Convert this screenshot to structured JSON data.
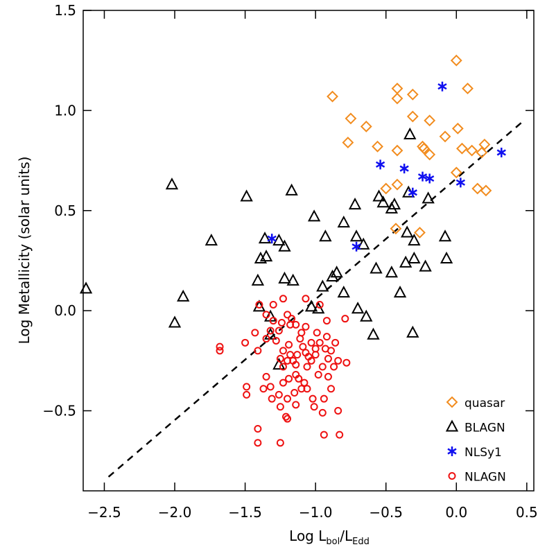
{
  "chart_data": {
    "type": "scatter",
    "xlabel": [
      "Log L",
      "bol",
      "/L",
      "Edd"
    ],
    "ylabel": "Log Metallicity (solar units)",
    "xlim": [
      -2.65,
      0.55
    ],
    "ylim": [
      -0.9,
      1.5
    ],
    "xticks": [
      {
        "value": -2.5,
        "label": "−2.5"
      },
      {
        "value": -2.0,
        "label": "−2.0"
      },
      {
        "value": -1.5,
        "label": "−1.5"
      },
      {
        "value": -1.0,
        "label": "−1.0"
      },
      {
        "value": -0.5,
        "label": "−0.5"
      },
      {
        "value": 0,
        "label": "0.0"
      },
      0.5
    ],
    "yticks": [
      {
        "value": -0.5,
        "label": "−0.5"
      },
      {
        "value": 0,
        "label": "0.0"
      },
      0.5,
      {
        "value": 1.0,
        "label": "1.0"
      },
      1.5
    ],
    "grid": false,
    "legend": "lower right",
    "fit_line": {
      "x": [
        -2.47,
        0.48
      ],
      "y": [
        -0.83,
        0.95
      ],
      "color": "#000000"
    },
    "series": [
      {
        "name": "quasar",
        "color": "#f28c1e",
        "marker": "diamond",
        "x": [
          0.0,
          -0.88,
          -0.42,
          -0.42,
          -0.31,
          -0.75,
          -0.77,
          -0.64,
          -0.56,
          -0.42,
          -0.31,
          -0.19,
          -0.24,
          -0.23,
          -0.19,
          -0.08,
          0.01,
          0.08,
          0.04,
          0.11,
          0.18,
          0.2,
          0.15,
          0.21,
          0.0,
          -0.5,
          -0.42,
          -0.43,
          -0.26
        ],
        "y": [
          1.25,
          1.07,
          1.11,
          1.06,
          1.08,
          0.96,
          0.84,
          0.92,
          0.82,
          0.8,
          0.97,
          0.95,
          0.82,
          0.81,
          0.78,
          0.87,
          0.91,
          1.11,
          0.81,
          0.8,
          0.79,
          0.83,
          0.61,
          0.6,
          0.69,
          0.61,
          0.63,
          0.41,
          0.39
        ]
      },
      {
        "name": "BLAGN",
        "color": "#000000",
        "marker": "triangle",
        "x": [
          -2.63,
          -2.02,
          -1.94,
          -2.0,
          -1.74,
          -1.49,
          -1.17,
          -1.36,
          -1.39,
          -1.35,
          -1.26,
          -1.22,
          -1.41,
          -1.4,
          -1.22,
          -1.16,
          -1.32,
          -1.26,
          -1.32,
          -1.01,
          -0.93,
          -0.85,
          -0.8,
          -1.03,
          -0.98,
          -0.95,
          -0.88,
          -0.8,
          -0.71,
          -0.72,
          -0.66,
          -0.7,
          -0.64,
          -0.59,
          -0.57,
          -0.55,
          -0.52,
          -0.46,
          -0.44,
          -0.46,
          -0.4,
          -0.34,
          -0.35,
          -0.33,
          -0.3,
          -0.36,
          -0.3,
          -0.31,
          -0.2,
          -0.22,
          -0.08,
          -0.07
        ],
        "y": [
          0.11,
          0.63,
          0.07,
          -0.06,
          0.35,
          0.57,
          0.6,
          0.36,
          0.26,
          0.27,
          0.35,
          0.32,
          0.15,
          0.02,
          0.16,
          0.15,
          -0.03,
          -0.27,
          -0.12,
          0.47,
          0.37,
          0.19,
          0.44,
          0.02,
          0.01,
          0.12,
          0.17,
          0.09,
          0.37,
          0.53,
          0.33,
          0.01,
          -0.03,
          -0.12,
          0.21,
          0.57,
          0.54,
          0.51,
          0.53,
          0.19,
          0.09,
          0.59,
          0.39,
          0.88,
          0.35,
          0.24,
          0.26,
          -0.11,
          0.56,
          0.22,
          0.37,
          0.26
        ]
      },
      {
        "name": "NLSy1",
        "color": "#1010f0",
        "marker": "asterisk",
        "x": [
          -0.1,
          0.32,
          -0.54,
          -0.37,
          -0.24,
          -0.19,
          -0.31,
          0.03,
          -1.31,
          -0.71
        ],
        "y": [
          1.12,
          0.79,
          0.73,
          0.71,
          0.67,
          0.66,
          0.59,
          0.64,
          0.36,
          0.32
        ]
      },
      {
        "name": "NLAGN",
        "color": "#ee1111",
        "marker": "circle",
        "x": [
          -1.68,
          -1.68,
          -1.4,
          -1.3,
          -1.23,
          -1.17,
          -1.35,
          -1.3,
          -1.2,
          -1.07,
          -0.97,
          -0.92,
          -0.79,
          -1.24,
          -1.18,
          -1.32,
          -1.26,
          -1.14,
          -1.07,
          -1.1,
          -0.99,
          -0.92,
          -1.11,
          -1.03,
          -1.5,
          -1.43,
          -1.41,
          -1.35,
          -1.28,
          -1.23,
          -1.19,
          -1.18,
          -1.09,
          -1.0,
          -0.97,
          -0.93,
          -0.89,
          -0.86,
          -1.07,
          -1.05,
          -1.13,
          -1.2,
          -1.25,
          -1.23,
          -1.16,
          -1.14,
          -1.03,
          -1.0,
          -1.06,
          -0.95,
          -0.91,
          -0.87,
          -0.84,
          -0.78,
          -1.14,
          -1.12,
          -1.08,
          -1.06,
          -1.19,
          -1.23,
          -1.32,
          -1.35,
          -1.26,
          -1.2,
          -1.25,
          -1.49,
          -1.37,
          -1.15,
          -1.1,
          -0.98,
          -0.91,
          -0.89,
          -0.94,
          -1.02,
          -1.01,
          -1.14,
          -1.21,
          -1.2,
          -0.95,
          -0.84,
          -1.31,
          -1.49,
          -1.41,
          -1.41,
          -1.25,
          -0.94,
          -0.83
        ],
        "y": [
          -0.18,
          -0.2,
          0.03,
          0.03,
          0.06,
          -0.04,
          -0.02,
          -0.05,
          -0.02,
          0.06,
          0.03,
          -0.05,
          -0.04,
          -0.06,
          -0.07,
          -0.1,
          -0.1,
          -0.07,
          -0.08,
          -0.11,
          -0.11,
          -0.13,
          -0.14,
          -0.16,
          -0.16,
          -0.11,
          -0.2,
          -0.14,
          -0.15,
          -0.2,
          -0.17,
          -0.22,
          -0.18,
          -0.19,
          -0.16,
          -0.19,
          -0.2,
          -0.16,
          -0.21,
          -0.23,
          -0.22,
          -0.25,
          -0.24,
          -0.28,
          -0.25,
          -0.27,
          -0.25,
          -0.22,
          -0.28,
          -0.28,
          -0.24,
          -0.28,
          -0.25,
          -0.26,
          -0.32,
          -0.34,
          -0.36,
          -0.39,
          -0.34,
          -0.36,
          -0.38,
          -0.33,
          -0.42,
          -0.44,
          -0.48,
          -0.38,
          -0.39,
          -0.41,
          -0.39,
          -0.32,
          -0.33,
          -0.39,
          -0.44,
          -0.44,
          -0.48,
          -0.47,
          -0.53,
          -0.54,
          -0.51,
          -0.5,
          -0.44,
          -0.42,
          -0.59,
          -0.66,
          -0.66,
          -0.62,
          -0.62
        ]
      }
    ]
  }
}
